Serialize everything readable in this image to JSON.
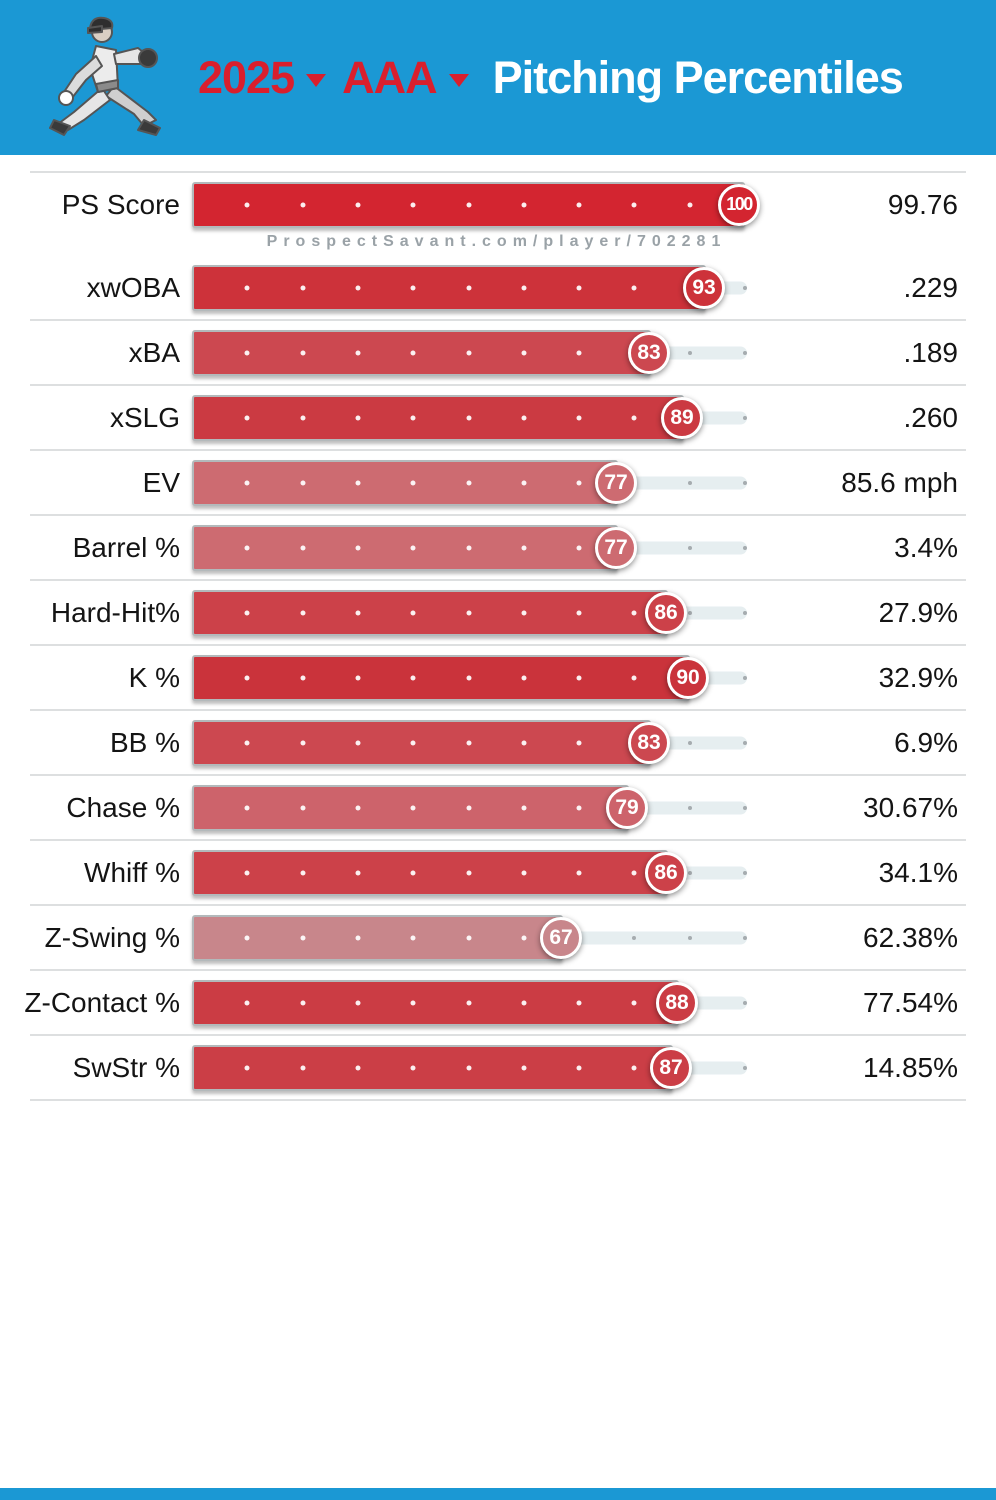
{
  "header": {
    "year": "2025",
    "level": "AAA",
    "title": "Pitching Percentiles",
    "accent_red": "#d91f2d",
    "bg_blue": "#1b98d4",
    "title_color": "#ffffff"
  },
  "watermark": "ProspectSavant.com/player/702281",
  "footer": {
    "bg_blue": "#1b98d4"
  },
  "chart_data": {
    "type": "bar",
    "title": "2025 AAA Pitching Percentiles",
    "xlabel": "percentile",
    "xlim": [
      0,
      100
    ],
    "grid": "decile dots at 10-90",
    "legend": "none",
    "track_color": "#e6eef0",
    "categories": [
      "PS Score",
      "xwOBA",
      "xBA",
      "xSLG",
      "EV",
      "Barrel %",
      "Hard-Hit%",
      "K %",
      "BB %",
      "Chase %",
      "Whiff %",
      "Z-Swing %",
      "Z-Contact %",
      "SwStr %"
    ],
    "values": [
      100,
      93,
      83,
      89,
      77,
      77,
      86,
      90,
      83,
      79,
      86,
      67,
      88,
      87
    ],
    "rows": [
      {
        "label": "PS Score",
        "percentile": 100,
        "value": "99.76",
        "color": "#d32530"
      },
      {
        "label": "xwOBA",
        "percentile": 93,
        "value": ".229",
        "color": "#cd323a"
      },
      {
        "label": "xBA",
        "percentile": 83,
        "value": ".189",
        "color": "#cc4850"
      },
      {
        "label": "xSLG",
        "percentile": 89,
        "value": ".260",
        "color": "#cb3a42"
      },
      {
        "label": "EV",
        "percentile": 77,
        "value": "85.6 mph",
        "color": "#cd6b71"
      },
      {
        "label": "Barrel %",
        "percentile": 77,
        "value": "3.4%",
        "color": "#cd6b71"
      },
      {
        "label": "Hard-Hit%",
        "percentile": 86,
        "value": "27.9%",
        "color": "#cc4149"
      },
      {
        "label": "K %",
        "percentile": 90,
        "value": "32.9%",
        "color": "#ca333b"
      },
      {
        "label": "BB %",
        "percentile": 83,
        "value": "6.9%",
        "color": "#cc4850"
      },
      {
        "label": "Chase %",
        "percentile": 79,
        "value": "30.67%",
        "color": "#cd636b"
      },
      {
        "label": "Whiff %",
        "percentile": 86,
        "value": "34.1%",
        "color": "#cc4149"
      },
      {
        "label": "Z-Swing %",
        "percentile": 67,
        "value": "62.38%",
        "color": "#c8868b"
      },
      {
        "label": "Z-Contact %",
        "percentile": 88,
        "value": "77.54%",
        "color": "#cb3c44"
      },
      {
        "label": "SwStr %",
        "percentile": 87,
        "value": "14.85%",
        "color": "#cb3e46"
      }
    ]
  }
}
